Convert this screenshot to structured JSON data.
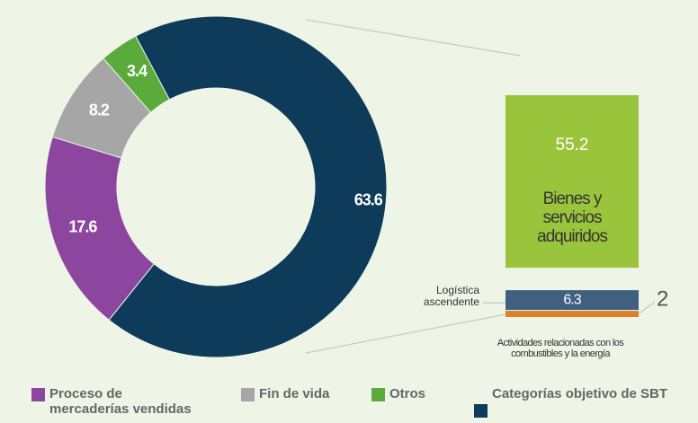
{
  "chart_data": [
    {
      "type": "pie",
      "categories": [
        "Categorías objetivo de SBT",
        "Proceso de mercaderías vendidas",
        "Fin de vida",
        "Otros"
      ],
      "values": [
        63.6,
        17.6,
        8.2,
        3.4
      ],
      "colors": [
        "#0d3b59",
        "#8c46a0",
        "#a6a6a6",
        "#5aab3c"
      ]
    },
    {
      "type": "bar",
      "categories": [
        "Actividades relacionadas con los combustibles y la energía",
        "Logística ascendente",
        "Bienes y servicios adquiridos"
      ],
      "values": [
        2,
        6.3,
        55.2
      ],
      "colors": [
        "#d9822b",
        "#3f607f",
        "#9ac43c"
      ]
    }
  ]
}
